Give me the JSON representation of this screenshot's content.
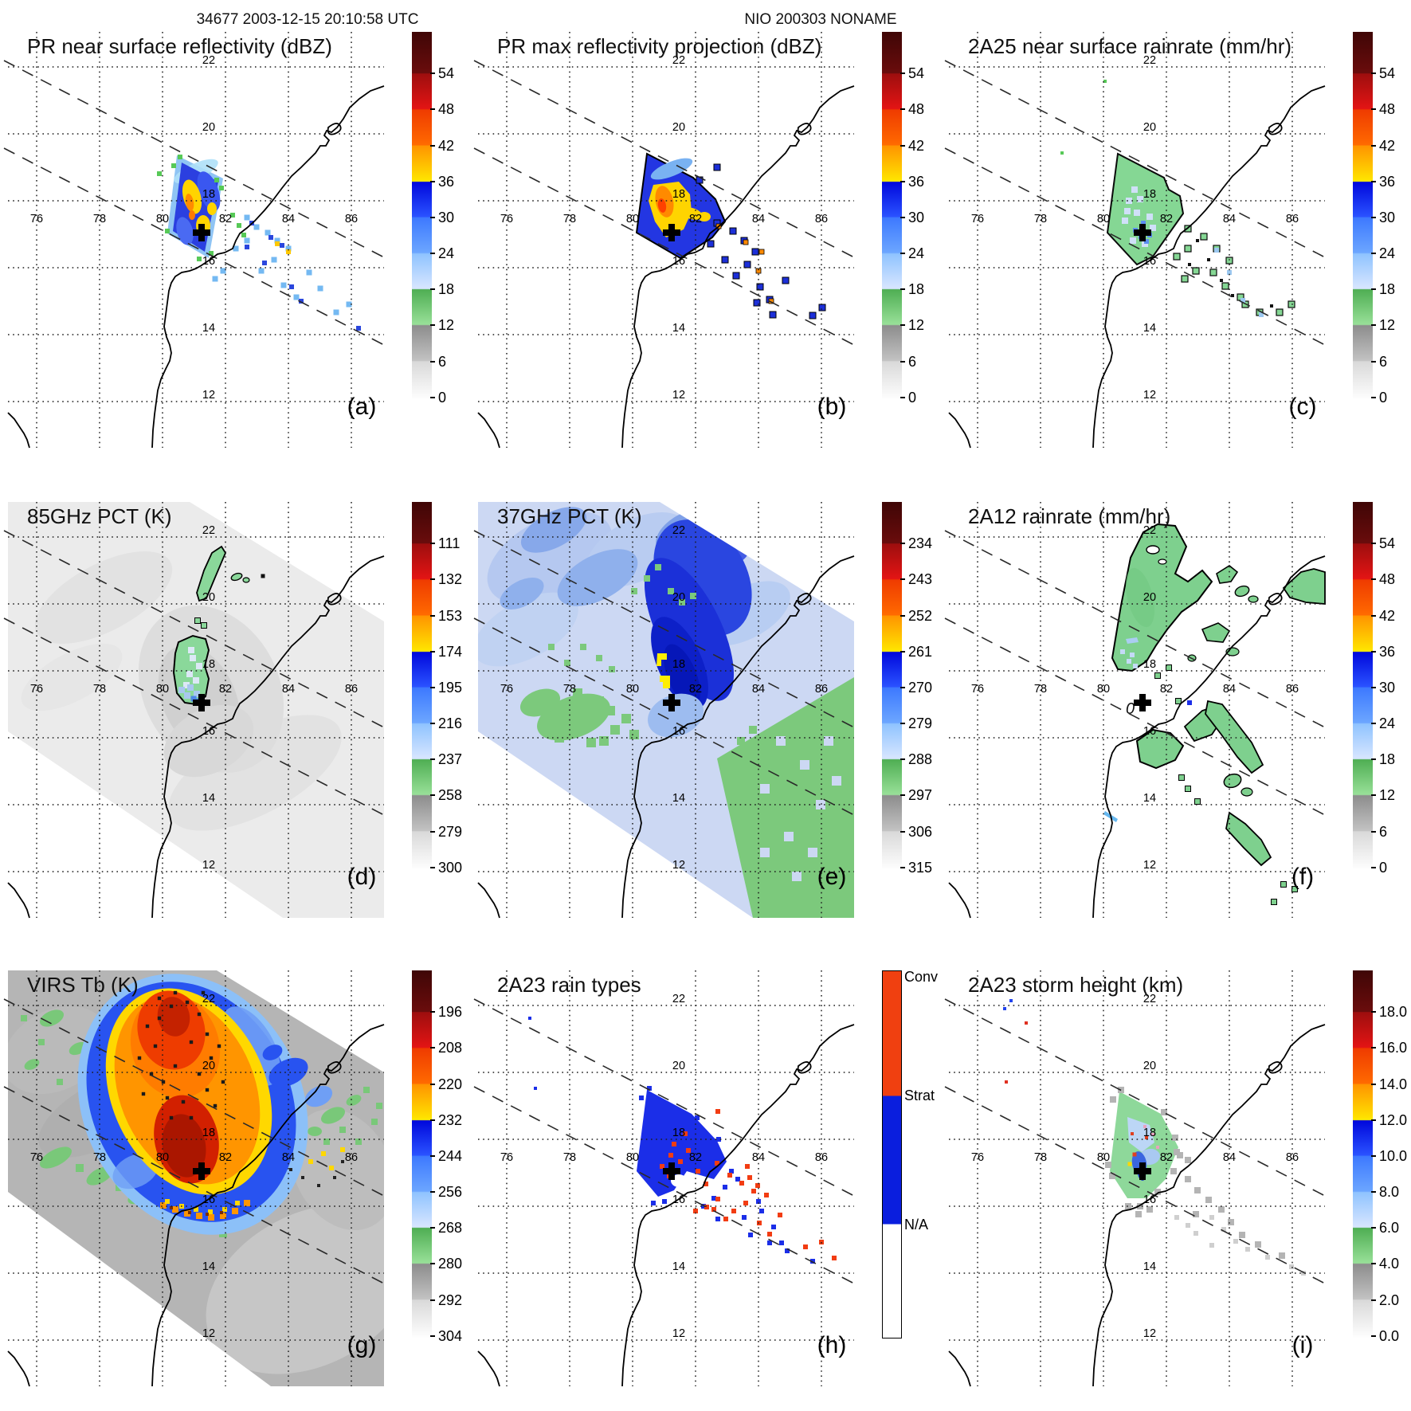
{
  "header": {
    "timestamp": "34677 2003-12-15 20:10:58 UTC",
    "storm_id": "NIO 200303 NONAME"
  },
  "axes": {
    "lon_labels": [
      "76",
      "78",
      "80",
      "82",
      "84",
      "86"
    ],
    "lat_labels": [
      "22",
      "20",
      "18",
      "16",
      "14",
      "12"
    ]
  },
  "scales": {
    "dbz": {
      "ticks": [
        "54",
        "48",
        "42",
        "36",
        "30",
        "24",
        "18",
        "12",
        "6",
        "0"
      ]
    },
    "rain": {
      "ticks": [
        "54",
        "48",
        "42",
        "36",
        "30",
        "24",
        "18",
        "12",
        "6",
        "0"
      ]
    },
    "pct85": {
      "ticks": [
        "111",
        "132",
        "153",
        "174",
        "195",
        "216",
        "237",
        "258",
        "279",
        "300"
      ]
    },
    "pct37": {
      "ticks": [
        "234",
        "243",
        "252",
        "261",
        "270",
        "279",
        "288",
        "297",
        "306",
        "315"
      ]
    },
    "virs": {
      "ticks": [
        "196",
        "208",
        "220",
        "232",
        "244",
        "256",
        "268",
        "280",
        "292",
        "304"
      ]
    },
    "height": {
      "ticks": [
        "18.0",
        "16.0",
        "14.0",
        "12.0",
        "10.0",
        "8.0",
        "6.0",
        "4.0",
        "2.0",
        "0.0"
      ]
    },
    "raintype": {
      "labels": [
        "Conv",
        "Strat",
        "N/A"
      ]
    }
  },
  "panels": [
    {
      "id": "a",
      "letter": "(a)",
      "title": "PR near surface reflectivity (dBZ)",
      "scale": "dbz"
    },
    {
      "id": "b",
      "letter": "(b)",
      "title": "PR max reflectivity projection (dBZ)",
      "scale": "dbz"
    },
    {
      "id": "c",
      "letter": "(c)",
      "title": "2A25 near surface rainrate (mm/hr)",
      "scale": "rain"
    },
    {
      "id": "d",
      "letter": "(d)",
      "title": "85GHz PCT (K)",
      "scale": "pct85"
    },
    {
      "id": "e",
      "letter": "(e)",
      "title": "37GHz PCT (K)",
      "scale": "pct37"
    },
    {
      "id": "f",
      "letter": "(f)",
      "title": "2A12 rainrate (mm/hr)",
      "scale": "rain"
    },
    {
      "id": "g",
      "letter": "(g)",
      "title": "VIRS Tb (K)",
      "scale": "virs"
    },
    {
      "id": "h",
      "letter": "(h)",
      "title": "2A23 rain types",
      "scale": "raintype"
    },
    {
      "id": "i",
      "letter": "(i)",
      "title": "2A23 storm height (km)",
      "scale": "height"
    }
  ],
  "annotations": {
    "zero_contour_label": "0",
    "storm_marker": "+"
  },
  "chart_data": [
    {
      "panel": "a",
      "type": "heatmap",
      "title": "PR near surface reflectivity (dBZ)",
      "units": "dBZ",
      "colorbar_ticks": [
        54,
        48,
        42,
        36,
        30,
        24,
        18,
        12,
        6,
        0
      ],
      "lon_ticks": [
        76,
        78,
        80,
        82,
        84,
        86
      ],
      "lat_ticks": [
        22,
        20,
        18,
        16,
        14,
        12
      ],
      "storm_center_lonlat": [
        81.3,
        17.1
      ]
    },
    {
      "panel": "b",
      "type": "heatmap",
      "title": "PR max reflectivity projection (dBZ)",
      "units": "dBZ",
      "colorbar_ticks": [
        54,
        48,
        42,
        36,
        30,
        24,
        18,
        12,
        6,
        0
      ],
      "lon_ticks": [
        76,
        78,
        80,
        82,
        84,
        86
      ],
      "lat_ticks": [
        22,
        20,
        18,
        16,
        14,
        12
      ],
      "storm_center_lonlat": [
        81.3,
        17.1
      ]
    },
    {
      "panel": "c",
      "type": "heatmap",
      "title": "2A25 near surface rainrate (mm/hr)",
      "units": "mm/hr",
      "colorbar_ticks": [
        54,
        48,
        42,
        36,
        30,
        24,
        18,
        12,
        6,
        0
      ],
      "lon_ticks": [
        76,
        78,
        80,
        82,
        84,
        86
      ],
      "lat_ticks": [
        22,
        20,
        18,
        16,
        14,
        12
      ],
      "storm_center_lonlat": [
        81.3,
        17.1
      ]
    },
    {
      "panel": "d",
      "type": "heatmap",
      "title": "85GHz PCT (K)",
      "units": "K",
      "colorbar_ticks": [
        111,
        132,
        153,
        174,
        195,
        216,
        237,
        258,
        279,
        300
      ],
      "lon_ticks": [
        76,
        78,
        80,
        82,
        84,
        86
      ],
      "lat_ticks": [
        22,
        20,
        18,
        16,
        14,
        12
      ],
      "storm_center_lonlat": [
        81.3,
        17.1
      ]
    },
    {
      "panel": "e",
      "type": "heatmap",
      "title": "37GHz PCT (K)",
      "units": "K",
      "colorbar_ticks": [
        234,
        243,
        252,
        261,
        270,
        279,
        288,
        297,
        306,
        315
      ],
      "lon_ticks": [
        76,
        78,
        80,
        82,
        84,
        86
      ],
      "lat_ticks": [
        22,
        20,
        18,
        16,
        14,
        12
      ],
      "storm_center_lonlat": [
        81.3,
        17.1
      ]
    },
    {
      "panel": "f",
      "type": "heatmap",
      "title": "2A12 rainrate (mm/hr)",
      "units": "mm/hr",
      "colorbar_ticks": [
        54,
        48,
        42,
        36,
        30,
        24,
        18,
        12,
        6,
        0
      ],
      "lon_ticks": [
        76,
        78,
        80,
        82,
        84,
        86
      ],
      "lat_ticks": [
        22,
        20,
        18,
        16,
        14,
        12
      ],
      "storm_center_lonlat": [
        81.3,
        17.1
      ]
    },
    {
      "panel": "g",
      "type": "heatmap",
      "title": "VIRS Tb (K)",
      "units": "K",
      "colorbar_ticks": [
        196,
        208,
        220,
        232,
        244,
        256,
        268,
        280,
        292,
        304
      ],
      "lon_ticks": [
        76,
        78,
        80,
        82,
        84,
        86
      ],
      "lat_ticks": [
        22,
        20,
        18,
        16,
        14,
        12
      ],
      "storm_center_lonlat": [
        81.3,
        17.1
      ]
    },
    {
      "panel": "h",
      "type": "heatmap",
      "title": "2A23 rain types",
      "categories": [
        "Conv",
        "Strat",
        "N/A"
      ],
      "lon_ticks": [
        76,
        78,
        80,
        82,
        84,
        86
      ],
      "lat_ticks": [
        22,
        20,
        18,
        16,
        14,
        12
      ],
      "storm_center_lonlat": [
        81.3,
        17.1
      ]
    },
    {
      "panel": "i",
      "type": "heatmap",
      "title": "2A23 storm height (km)",
      "units": "km",
      "colorbar_ticks": [
        18,
        16,
        14,
        12,
        10,
        8,
        6,
        4,
        2,
        0
      ],
      "lon_ticks": [
        76,
        78,
        80,
        82,
        84,
        86
      ],
      "lat_ticks": [
        22,
        20,
        18,
        16,
        14,
        12
      ],
      "storm_center_lonlat": [
        81.3,
        17.1
      ]
    }
  ]
}
